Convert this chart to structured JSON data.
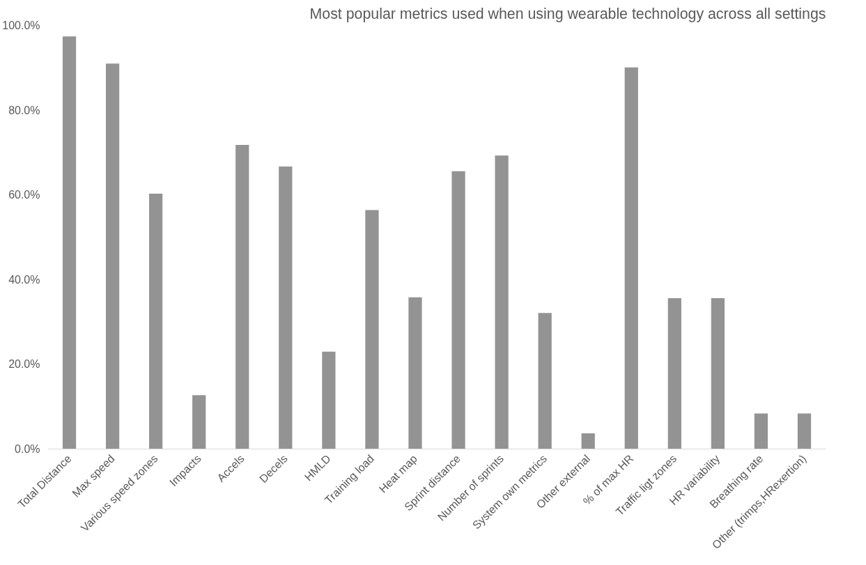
{
  "chart_data": {
    "type": "bar",
    "title": "Most popular metrics used when using wearable technology across all settings",
    "categories": [
      "Total Distance",
      "Max speed",
      "Various speed zones",
      "Impacts",
      "Accels",
      "Decels",
      "HMLD",
      "Training load",
      "Heat map",
      "Sprint distance",
      "Number of sprints",
      "System own metrics",
      "Other external",
      "% of max HR",
      "Traffic ligt zones",
      "HR variability",
      "Breathing rate",
      "Other (trimps,HRexertion)"
    ],
    "values": [
      97.4,
      91.0,
      60.3,
      12.7,
      71.8,
      66.7,
      23.0,
      56.4,
      35.8,
      65.6,
      69.3,
      32.1,
      3.7,
      90.1,
      35.6,
      35.6,
      8.4,
      8.4
    ],
    "color": "#939393",
    "ylim": [
      0,
      100
    ],
    "yticks": [
      {
        "value": 0,
        "label": "0.0%"
      },
      {
        "value": 20,
        "label": "20.0%"
      },
      {
        "value": 40,
        "label": "40.0%"
      },
      {
        "value": 60,
        "label": "60.0%"
      },
      {
        "value": 80,
        "label": "80.0%"
      },
      {
        "value": 100,
        "label": "100.0%"
      }
    ]
  }
}
